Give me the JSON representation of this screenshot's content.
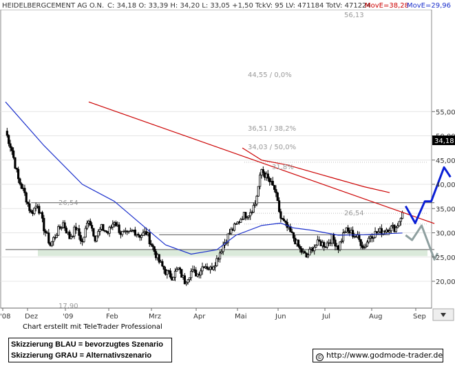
{
  "header": {
    "title": "HEIDELBERGCEMENT AG O.N.",
    "quote": "C: 34,18 O: 33,39 H: 34,20 L: 33,05 +1,50 TckV: 95 LV: 471184 TotV: 471224",
    "move_red": "MovE=38,28",
    "move_blue": "MovE=29,96"
  },
  "colors": {
    "price": "#000000",
    "ma_red": "#cc0000",
    "ma_blue": "#1a2fcc",
    "trend_red": "#cc0000",
    "scenario_blue": "#0a1fd6",
    "scenario_gray": "#8fa0a0",
    "support_zone": "#dbeadb",
    "grid": "#b0b0b0",
    "last_price_box": "#000000"
  },
  "credit": "Chart erstellt mit TeleTrader Professional",
  "notes": [
    "Skizzierung BLAU = bevorzugtes Szenario",
    "Skizzierung GRAU = Alternativszenario"
  ],
  "website": "http://www.godmode-trader.de",
  "chart_data": {
    "type": "candlestick",
    "instrument": "HEIDELBERGCEMENT AG O.N.",
    "y_axis": {
      "ticks": [
        "20,00",
        "25,00",
        "30,00",
        "35,00",
        "40,00",
        "45,00",
        "50,00",
        "55,00"
      ],
      "range": [
        17.5,
        56
      ],
      "position": "right"
    },
    "x_axis": {
      "labels": [
        "'08",
        "Dez",
        "'09",
        "Feb",
        "Mrz",
        "Apr",
        "Mai",
        "Jun",
        "Jul",
        "Aug",
        "Sep"
      ]
    },
    "last_price": "34,18",
    "annotations": {
      "high_label": "56,13",
      "low_label": "17,90",
      "support_left": "26,54",
      "support_right": "26,54",
      "fib_100": "44,55 / 0,0%",
      "fib_382": "36,51 / 38,2%",
      "fib_50": "34,03 / 50,0%",
      "fib_618": "31,8%"
    },
    "price_anchors": [
      [
        0,
        51
      ],
      [
        1,
        47
      ],
      [
        2,
        41
      ],
      [
        3,
        38
      ],
      [
        4,
        34
      ],
      [
        5,
        36
      ],
      [
        6,
        31
      ],
      [
        7,
        27.5
      ],
      [
        8,
        30
      ],
      [
        9,
        32
      ],
      [
        10,
        29
      ],
      [
        11,
        31
      ],
      [
        12,
        28
      ],
      [
        13,
        33
      ],
      [
        14,
        29
      ],
      [
        15,
        31
      ],
      [
        16,
        30
      ],
      [
        17,
        32.5
      ],
      [
        18,
        30
      ],
      [
        19,
        29.5
      ],
      [
        20,
        30.5
      ],
      [
        21,
        29.5
      ],
      [
        22,
        30
      ],
      [
        23,
        27
      ],
      [
        24,
        24
      ],
      [
        25,
        22
      ],
      [
        26,
        21
      ],
      [
        27,
        22.5
      ],
      [
        28,
        20
      ],
      [
        29,
        22
      ],
      [
        30,
        21.5
      ],
      [
        31,
        23.5
      ],
      [
        32,
        22.5
      ],
      [
        33,
        24.5
      ],
      [
        34,
        27.5
      ],
      [
        35,
        30
      ],
      [
        36,
        31.5
      ],
      [
        37,
        33.5
      ],
      [
        38,
        34
      ],
      [
        39,
        36
      ],
      [
        40,
        43
      ],
      [
        41,
        41
      ],
      [
        42,
        39
      ],
      [
        43,
        33
      ],
      [
        44,
        31
      ],
      [
        45,
        29
      ],
      [
        46,
        26.5
      ],
      [
        47,
        25
      ],
      [
        48,
        27
      ],
      [
        49,
        28
      ],
      [
        50,
        27.5
      ],
      [
        51,
        29
      ],
      [
        52,
        27
      ],
      [
        53,
        30.5
      ],
      [
        54,
        30
      ],
      [
        55,
        29
      ],
      [
        56,
        27
      ],
      [
        57,
        29.5
      ],
      [
        58,
        30
      ],
      [
        59,
        30.5
      ],
      [
        60,
        31
      ],
      [
        61,
        31
      ],
      [
        62,
        34.18
      ]
    ],
    "ma_red": [
      [
        37,
        47.5
      ],
      [
        40,
        45
      ],
      [
        44,
        44
      ],
      [
        48,
        42.5
      ],
      [
        52,
        41
      ],
      [
        56,
        39.5
      ],
      [
        60,
        38.28
      ]
    ],
    "ma_blue": [
      [
        0,
        57
      ],
      [
        6,
        48
      ],
      [
        12,
        40
      ],
      [
        17,
        36.5
      ],
      [
        21,
        32
      ],
      [
        25,
        27.5
      ],
      [
        29,
        25.6
      ],
      [
        33,
        26.5
      ],
      [
        36,
        29.5
      ],
      [
        40,
        31.5
      ],
      [
        43,
        32
      ],
      [
        45,
        31
      ],
      [
        48,
        30.5
      ],
      [
        52,
        29.5
      ],
      [
        56,
        29.6
      ],
      [
        62,
        29.96
      ]
    ],
    "trend_line_red": [
      [
        13,
        57
      ],
      [
        67,
        31.9
      ]
    ],
    "horizontal_lines": [
      {
        "value": 36.2,
        "from": 4,
        "to": 67
      },
      {
        "value": 29.6,
        "from": 24,
        "to": 60
      },
      {
        "value": 26.54,
        "from": 0,
        "to": 67
      }
    ],
    "support_zone": [
      25.2,
      26.54
    ],
    "scenario_blue": [
      [
        62.5,
        35.5
      ],
      [
        64,
        32
      ],
      [
        65.5,
        36.5
      ],
      [
        66.5,
        36.5
      ],
      [
        68.5,
        43.5
      ],
      [
        69.5,
        41.5
      ]
    ],
    "scenario_gray": [
      [
        62.5,
        29.5
      ],
      [
        63.5,
        28.5
      ],
      [
        65,
        31.5
      ],
      [
        67,
        24.5
      ],
      [
        67.5,
        25.8
      ]
    ]
  }
}
